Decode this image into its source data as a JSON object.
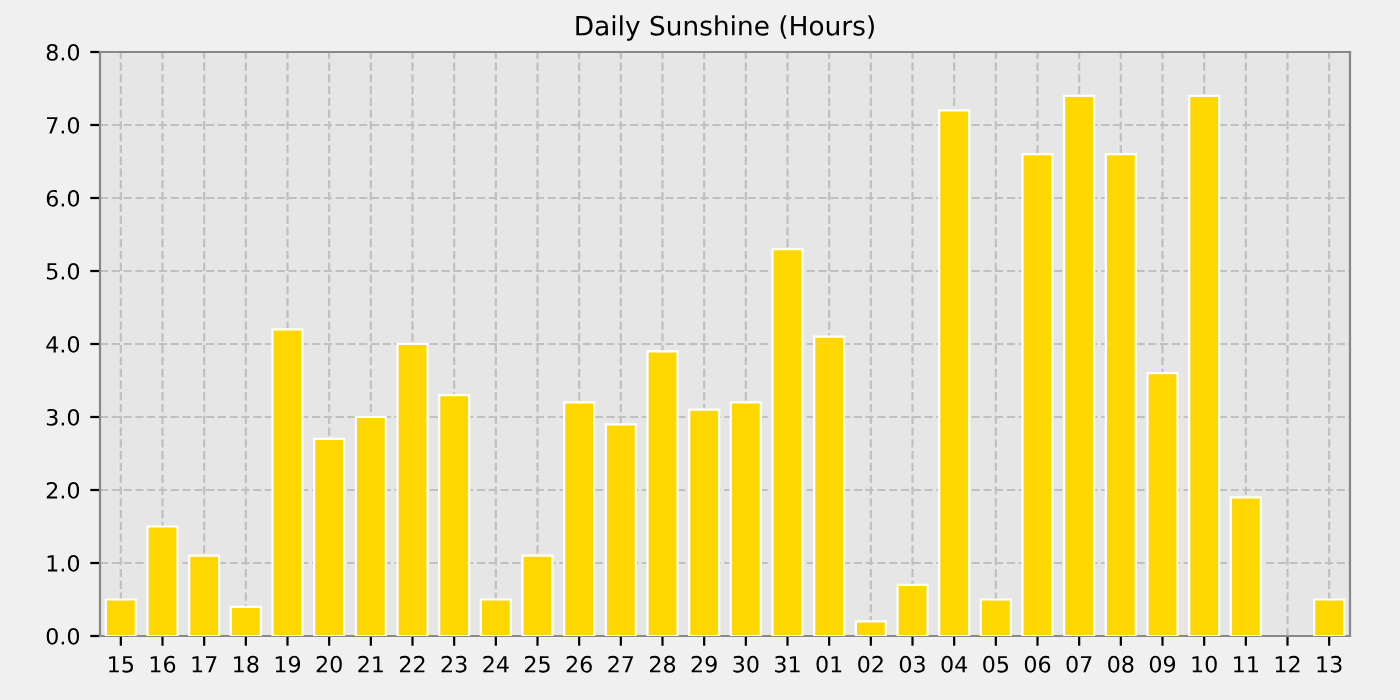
{
  "chart_data": {
    "type": "bar",
    "title": "Daily Sunshine (Hours)",
    "categories": [
      "15",
      "16",
      "17",
      "18",
      "19",
      "20",
      "21",
      "22",
      "23",
      "24",
      "25",
      "26",
      "27",
      "28",
      "29",
      "30",
      "31",
      "01",
      "02",
      "03",
      "04",
      "05",
      "06",
      "07",
      "08",
      "09",
      "10",
      "11",
      "12",
      "13"
    ],
    "values": [
      0.5,
      1.5,
      1.1,
      0.4,
      4.2,
      2.7,
      3.0,
      4.0,
      3.3,
      0.5,
      1.1,
      3.2,
      2.9,
      3.9,
      3.1,
      3.2,
      5.3,
      4.1,
      0.2,
      0.7,
      7.2,
      0.5,
      6.6,
      7.4,
      6.6,
      3.6,
      7.4,
      1.9,
      null,
      0.5
    ],
    "color": "#ffd700",
    "ylim": [
      0,
      8
    ],
    "yticks": [
      {
        "value": 0,
        "label": "0.0"
      },
      {
        "value": 1,
        "label": "1.0"
      },
      {
        "value": 2,
        "label": "2.0"
      },
      {
        "value": 3,
        "label": "3.0"
      },
      {
        "value": 4,
        "label": "4.0"
      },
      {
        "value": 5,
        "label": "5.0"
      },
      {
        "value": 6,
        "label": "6.0"
      },
      {
        "value": 7,
        "label": "7.0"
      },
      {
        "value": 8,
        "label": "8.0"
      }
    ],
    "grid": true,
    "line_style": "dashed"
  }
}
